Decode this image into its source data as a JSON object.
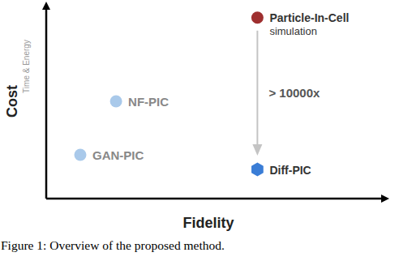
{
  "chart_data": {
    "type": "scatter",
    "xlabel": "Fidelity",
    "ylabel": "Cost",
    "ylabel_note": "Time & Energy",
    "caption": "Figure 1: Overview of the proposed method.",
    "annotation": "> 10000x",
    "xlim": [
      0,
      100
    ],
    "ylim": [
      0,
      100
    ],
    "tick_labels": false,
    "grid": false,
    "series": [
      {
        "name": "Particle-In-Cell simulation",
        "color": "#9e2f2f",
        "marker": "circle",
        "x": [
          62
        ],
        "values": [
          93
        ]
      },
      {
        "name": "NF-PIC",
        "color": "#a9c9ea",
        "marker": "circle",
        "x": [
          20.5
        ],
        "values": [
          50
        ]
      },
      {
        "name": "GAN-PIC",
        "color": "#a9c9ea",
        "marker": "circle",
        "x": [
          10
        ],
        "values": [
          22.5
        ]
      },
      {
        "name": "Diff-PIC",
        "color": "#3a7dd6",
        "marker": "hexagon",
        "x": [
          62
        ],
        "values": [
          15
        ]
      }
    ]
  }
}
